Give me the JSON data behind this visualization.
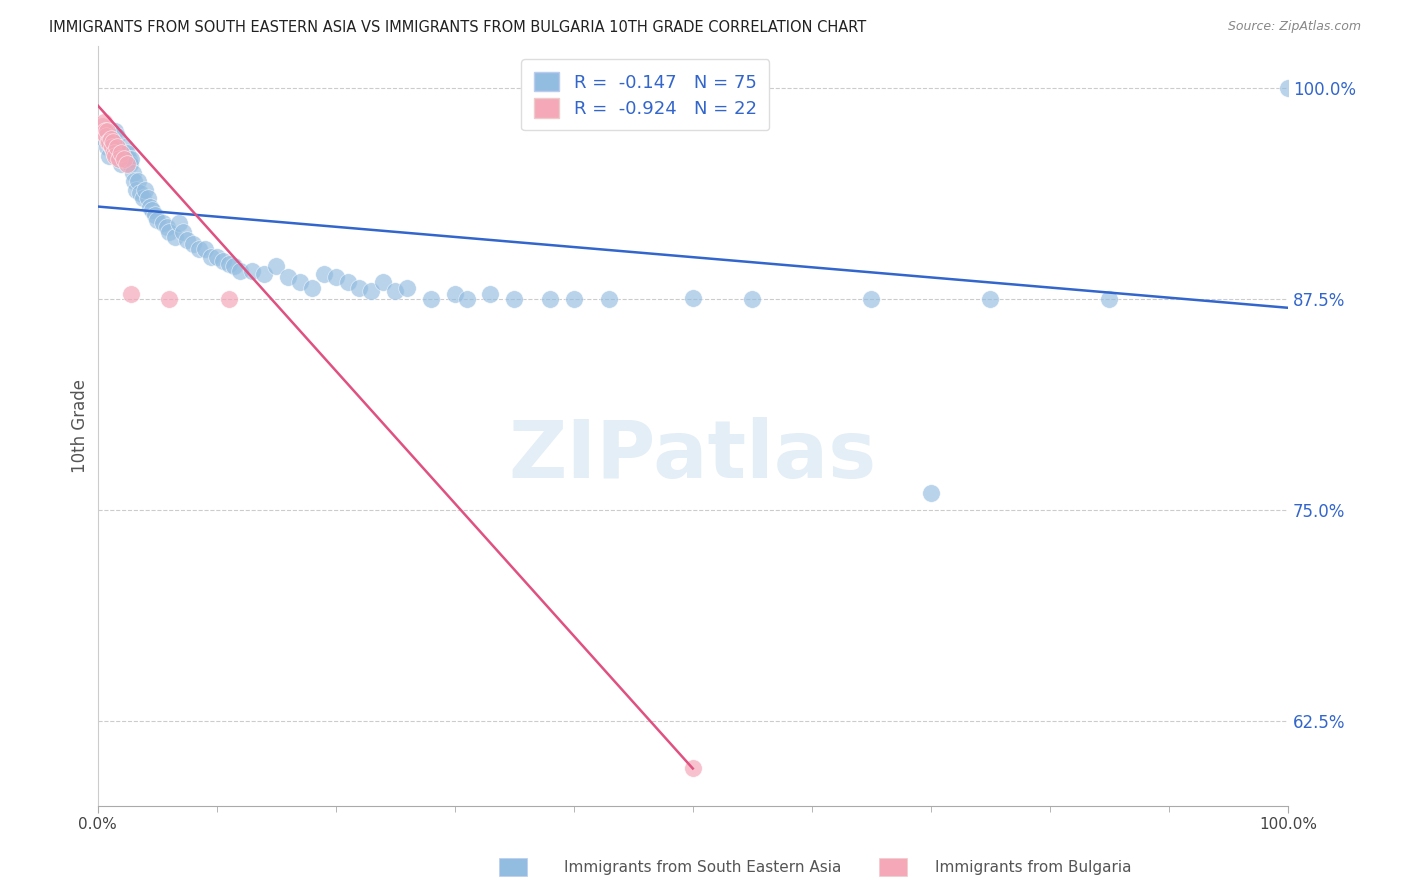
{
  "title": "IMMIGRANTS FROM SOUTH EASTERN ASIA VS IMMIGRANTS FROM BULGARIA 10TH GRADE CORRELATION CHART",
  "source": "Source: ZipAtlas.com",
  "ylabel": "10th Grade",
  "xlim": [
    0.0,
    1.0
  ],
  "ylim": [
    0.575,
    1.025
  ],
  "yticks": [
    0.625,
    0.75,
    0.875,
    1.0
  ],
  "ytick_labels": [
    "62.5%",
    "75.0%",
    "87.5%",
    "100.0%"
  ],
  "blue_R": -0.147,
  "blue_N": 75,
  "pink_R": -0.924,
  "pink_N": 22,
  "blue_color": "#92bce0",
  "pink_color": "#f4a8b8",
  "blue_line_color": "#3366cc",
  "pink_line_color": "#e05080",
  "legend_label_blue": "Immigrants from South Eastern Asia",
  "legend_label_pink": "Immigrants from Bulgaria",
  "watermark": "ZIPatlas",
  "blue_line": [
    0.0,
    0.93,
    1.0,
    0.87
  ],
  "pink_line": [
    0.0,
    0.99,
    0.5,
    0.597
  ],
  "blue_points_x": [
    0.005,
    0.008,
    0.01,
    0.012,
    0.014,
    0.015,
    0.016,
    0.018,
    0.019,
    0.02,
    0.021,
    0.022,
    0.023,
    0.024,
    0.025,
    0.026,
    0.027,
    0.028,
    0.03,
    0.031,
    0.032,
    0.034,
    0.036,
    0.038,
    0.04,
    0.042,
    0.044,
    0.046,
    0.048,
    0.05,
    0.055,
    0.058,
    0.06,
    0.065,
    0.068,
    0.072,
    0.075,
    0.08,
    0.085,
    0.09,
    0.095,
    0.1,
    0.105,
    0.11,
    0.115,
    0.12,
    0.13,
    0.14,
    0.15,
    0.16,
    0.17,
    0.18,
    0.19,
    0.2,
    0.21,
    0.22,
    0.23,
    0.24,
    0.25,
    0.26,
    0.28,
    0.3,
    0.31,
    0.33,
    0.35,
    0.38,
    0.4,
    0.43,
    0.5,
    0.55,
    0.65,
    0.7,
    0.75,
    0.85,
    1.0
  ],
  "blue_points_y": [
    0.97,
    0.965,
    0.96,
    0.965,
    0.968,
    0.975,
    0.972,
    0.96,
    0.958,
    0.955,
    0.962,
    0.958,
    0.965,
    0.958,
    0.962,
    0.958,
    0.955,
    0.958,
    0.95,
    0.945,
    0.94,
    0.945,
    0.938,
    0.935,
    0.94,
    0.935,
    0.93,
    0.928,
    0.925,
    0.922,
    0.92,
    0.918,
    0.915,
    0.912,
    0.92,
    0.915,
    0.91,
    0.908,
    0.905,
    0.905,
    0.9,
    0.9,
    0.898,
    0.896,
    0.895,
    0.892,
    0.892,
    0.89,
    0.895,
    0.888,
    0.885,
    0.882,
    0.89,
    0.888,
    0.885,
    0.882,
    0.88,
    0.885,
    0.88,
    0.882,
    0.875,
    0.878,
    0.875,
    0.878,
    0.875,
    0.875,
    0.875,
    0.875,
    0.876,
    0.875,
    0.875,
    0.76,
    0.875,
    0.875,
    1.0
  ],
  "pink_points_x": [
    0.002,
    0.004,
    0.005,
    0.006,
    0.007,
    0.008,
    0.009,
    0.01,
    0.011,
    0.012,
    0.013,
    0.014,
    0.015,
    0.016,
    0.018,
    0.02,
    0.022,
    0.025,
    0.028,
    0.06,
    0.11,
    0.5
  ],
  "pink_points_y": [
    0.975,
    0.978,
    0.98,
    0.975,
    0.972,
    0.975,
    0.968,
    0.968,
    0.97,
    0.965,
    0.968,
    0.962,
    0.96,
    0.965,
    0.958,
    0.962,
    0.958,
    0.955,
    0.878,
    0.875,
    0.875,
    0.597
  ]
}
